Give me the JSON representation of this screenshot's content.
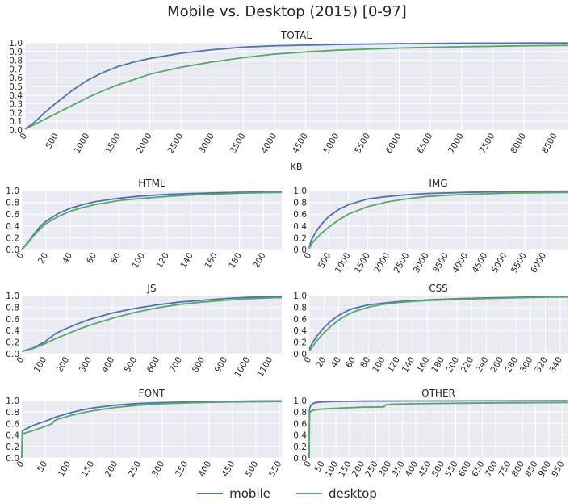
{
  "title": "Mobile vs. Desktop (2015) [0-97]",
  "legend": [
    {
      "name": "mobile",
      "color": "#4C72B0"
    },
    {
      "name": "desktop",
      "color": "#55A868"
    }
  ],
  "chart_data": [
    {
      "type": "line",
      "title": "TOTAL",
      "xlabel": "KB",
      "ylabel": "",
      "xlim": [
        0,
        8700
      ],
      "ylim": [
        0,
        1.0
      ],
      "xticks": [
        0,
        500,
        1000,
        1500,
        2000,
        2500,
        3000,
        3500,
        4000,
        4500,
        5000,
        5500,
        6000,
        6500,
        7000,
        7500,
        8000,
        8500
      ],
      "yticks": [
        0.0,
        0.1,
        0.2,
        0.3,
        0.4,
        0.5,
        0.6,
        0.7,
        0.8,
        0.9,
        1.0
      ],
      "series": [
        {
          "name": "mobile",
          "x": [
            0,
            100,
            200,
            300,
            500,
            750,
            1000,
            1250,
            1500,
            1750,
            2000,
            2500,
            3000,
            3500,
            4000,
            5000,
            6000,
            7000,
            8000,
            8700
          ],
          "y": [
            0.01,
            0.06,
            0.12,
            0.19,
            0.31,
            0.45,
            0.57,
            0.66,
            0.73,
            0.78,
            0.82,
            0.88,
            0.92,
            0.95,
            0.965,
            0.98,
            0.99,
            0.995,
            0.997,
            0.998
          ]
        },
        {
          "name": "desktop",
          "x": [
            0,
            200,
            500,
            750,
            1000,
            1250,
            1500,
            1750,
            2000,
            2500,
            3000,
            3500,
            4000,
            4500,
            5000,
            6000,
            7000,
            8000,
            8700
          ],
          "y": [
            0.01,
            0.08,
            0.19,
            0.28,
            0.37,
            0.45,
            0.52,
            0.58,
            0.64,
            0.72,
            0.78,
            0.83,
            0.87,
            0.895,
            0.915,
            0.94,
            0.955,
            0.965,
            0.97
          ]
        }
      ]
    },
    {
      "type": "line",
      "title": "HTML",
      "xlabel": "",
      "ylabel": "",
      "xlim": [
        0,
        215
      ],
      "ylim": [
        0,
        1.0
      ],
      "xticks": [
        0,
        20,
        40,
        60,
        80,
        100,
        120,
        140,
        160,
        180,
        200
      ],
      "yticks": [
        0.0,
        0.2,
        0.4,
        0.6,
        0.8,
        1.0
      ],
      "series": [
        {
          "name": "mobile",
          "x": [
            0,
            5,
            10,
            15,
            20,
            30,
            40,
            50,
            60,
            80,
            100,
            120,
            140,
            160,
            180,
            200,
            215
          ],
          "y": [
            0.0,
            0.12,
            0.26,
            0.39,
            0.48,
            0.61,
            0.7,
            0.76,
            0.81,
            0.87,
            0.91,
            0.935,
            0.95,
            0.962,
            0.97,
            0.977,
            0.98
          ]
        },
        {
          "name": "desktop",
          "x": [
            0,
            5,
            10,
            15,
            20,
            30,
            40,
            50,
            60,
            80,
            100,
            120,
            140,
            160,
            180,
            200,
            215
          ],
          "y": [
            0.0,
            0.11,
            0.24,
            0.35,
            0.44,
            0.56,
            0.65,
            0.71,
            0.76,
            0.83,
            0.87,
            0.9,
            0.925,
            0.94,
            0.955,
            0.965,
            0.97
          ]
        }
      ]
    },
    {
      "type": "line",
      "title": "IMG",
      "xlabel": "",
      "ylabel": "",
      "xlim": [
        0,
        6600
      ],
      "ylim": [
        0,
        1.0
      ],
      "xticks": [
        0,
        500,
        1000,
        1500,
        2000,
        2500,
        3000,
        3500,
        4000,
        4500,
        5000,
        5500,
        6000
      ],
      "yticks": [
        0.0,
        0.2,
        0.4,
        0.6,
        0.8,
        1.0
      ],
      "series": [
        {
          "name": "mobile",
          "x": [
            0,
            50,
            100,
            200,
            300,
            500,
            750,
            1000,
            1500,
            2000,
            2500,
            3000,
            3500,
            4000,
            5000,
            6000,
            6600
          ],
          "y": [
            0.03,
            0.15,
            0.22,
            0.33,
            0.42,
            0.56,
            0.68,
            0.76,
            0.86,
            0.9,
            0.93,
            0.95,
            0.96,
            0.97,
            0.98,
            0.99,
            0.99
          ]
        },
        {
          "name": "desktop",
          "x": [
            0,
            50,
            100,
            200,
            300,
            500,
            750,
            1000,
            1500,
            2000,
            2500,
            3000,
            3500,
            4000,
            5000,
            6000,
            6600
          ],
          "y": [
            0.02,
            0.08,
            0.13,
            0.2,
            0.27,
            0.38,
            0.5,
            0.6,
            0.73,
            0.81,
            0.86,
            0.9,
            0.92,
            0.935,
            0.955,
            0.965,
            0.97
          ]
        }
      ]
    },
    {
      "type": "line",
      "title": "JS",
      "xlabel": "",
      "ylabel": "",
      "xlim": [
        0,
        1150
      ],
      "ylim": [
        0,
        1.0
      ],
      "xticks": [
        0,
        100,
        200,
        300,
        400,
        500,
        600,
        700,
        800,
        900,
        1000,
        1100
      ],
      "yticks": [
        0.0,
        0.2,
        0.4,
        0.6,
        0.8,
        1.0
      ],
      "series": [
        {
          "name": "mobile",
          "x": [
            0,
            50,
            100,
            150,
            200,
            250,
            300,
            400,
            500,
            600,
            700,
            800,
            900,
            1000,
            1100,
            1150
          ],
          "y": [
            0.04,
            0.1,
            0.2,
            0.35,
            0.44,
            0.52,
            0.59,
            0.7,
            0.78,
            0.84,
            0.89,
            0.92,
            0.95,
            0.97,
            0.98,
            0.985
          ]
        },
        {
          "name": "desktop",
          "x": [
            0,
            50,
            100,
            150,
            200,
            250,
            300,
            400,
            500,
            600,
            700,
            800,
            900,
            1000,
            1100,
            1150
          ],
          "y": [
            0.04,
            0.09,
            0.17,
            0.26,
            0.34,
            0.42,
            0.49,
            0.61,
            0.71,
            0.79,
            0.85,
            0.89,
            0.92,
            0.945,
            0.96,
            0.965
          ]
        }
      ]
    },
    {
      "type": "line",
      "title": "CSS",
      "xlabel": "",
      "ylabel": "",
      "xlim": [
        0,
        350
      ],
      "ylim": [
        0,
        1.0
      ],
      "xticks": [
        0,
        20,
        40,
        60,
        80,
        100,
        120,
        140,
        160,
        180,
        200,
        220,
        240,
        260,
        280,
        300,
        320,
        340
      ],
      "yticks": [
        0.0,
        0.2,
        0.4,
        0.6,
        0.8,
        1.0
      ],
      "series": [
        {
          "name": "mobile",
          "x": [
            0,
            5,
            10,
            20,
            30,
            40,
            50,
            60,
            80,
            100,
            120,
            140,
            160,
            200,
            240,
            280,
            320,
            350
          ],
          "y": [
            0.08,
            0.2,
            0.3,
            0.45,
            0.57,
            0.66,
            0.73,
            0.78,
            0.84,
            0.87,
            0.895,
            0.91,
            0.925,
            0.945,
            0.96,
            0.97,
            0.978,
            0.982
          ]
        },
        {
          "name": "desktop",
          "x": [
            0,
            5,
            10,
            20,
            30,
            40,
            50,
            60,
            80,
            100,
            120,
            140,
            160,
            200,
            240,
            280,
            320,
            350
          ],
          "y": [
            0.05,
            0.13,
            0.22,
            0.36,
            0.48,
            0.58,
            0.66,
            0.72,
            0.8,
            0.85,
            0.88,
            0.9,
            0.915,
            0.935,
            0.95,
            0.962,
            0.972,
            0.976
          ]
        }
      ]
    },
    {
      "type": "line",
      "title": "FONT",
      "xlabel": "",
      "ylabel": "",
      "xlim": [
        0,
        555
      ],
      "ylim": [
        0,
        1.0
      ],
      "xticks": [
        0,
        50,
        100,
        150,
        200,
        250,
        300,
        350,
        400,
        450,
        500,
        550
      ],
      "yticks": [
        0.0,
        0.2,
        0.4,
        0.6,
        0.8,
        1.0
      ],
      "series": [
        {
          "name": "mobile",
          "x": [
            0,
            1,
            10,
            25,
            50,
            75,
            100,
            125,
            150,
            200,
            250,
            300,
            350,
            400,
            450,
            500,
            555
          ],
          "y": [
            0.0,
            0.47,
            0.51,
            0.57,
            0.64,
            0.72,
            0.78,
            0.83,
            0.87,
            0.92,
            0.95,
            0.965,
            0.975,
            0.983,
            0.988,
            0.992,
            0.995
          ]
        },
        {
          "name": "desktop",
          "x": [
            0,
            1,
            10,
            25,
            50,
            65,
            70,
            75,
            100,
            125,
            150,
            200,
            250,
            300,
            350,
            400,
            450,
            500,
            555
          ],
          "y": [
            0.0,
            0.42,
            0.44,
            0.48,
            0.55,
            0.6,
            0.65,
            0.67,
            0.73,
            0.78,
            0.82,
            0.88,
            0.92,
            0.945,
            0.958,
            0.968,
            0.975,
            0.98,
            0.984
          ]
        }
      ]
    },
    {
      "type": "line",
      "title": "OTHER",
      "xlabel": "",
      "ylabel": "",
      "xlim": [
        0,
        970
      ],
      "ylim": [
        0,
        1.0
      ],
      "xticks": [
        0,
        50,
        100,
        150,
        200,
        250,
        300,
        350,
        400,
        450,
        500,
        550,
        600,
        650,
        700,
        750,
        800,
        850,
        900,
        950
      ],
      "yticks": [
        0.0,
        0.2,
        0.4,
        0.6,
        0.8,
        1.0
      ],
      "series": [
        {
          "name": "mobile",
          "x": [
            0,
            1,
            5,
            15,
            30,
            60,
            100,
            150,
            200,
            300,
            400,
            600,
            800,
            970
          ],
          "y": [
            0.0,
            0.85,
            0.91,
            0.95,
            0.97,
            0.98,
            0.985,
            0.988,
            0.99,
            0.992,
            0.993,
            0.995,
            0.996,
            0.997
          ]
        },
        {
          "name": "desktop",
          "x": [
            0,
            1,
            5,
            15,
            30,
            60,
            100,
            150,
            200,
            280,
            290,
            300,
            400,
            600,
            800,
            970
          ],
          "y": [
            0.0,
            0.77,
            0.81,
            0.83,
            0.845,
            0.855,
            0.865,
            0.875,
            0.885,
            0.89,
            0.93,
            0.935,
            0.945,
            0.955,
            0.962,
            0.967
          ]
        }
      ]
    }
  ]
}
